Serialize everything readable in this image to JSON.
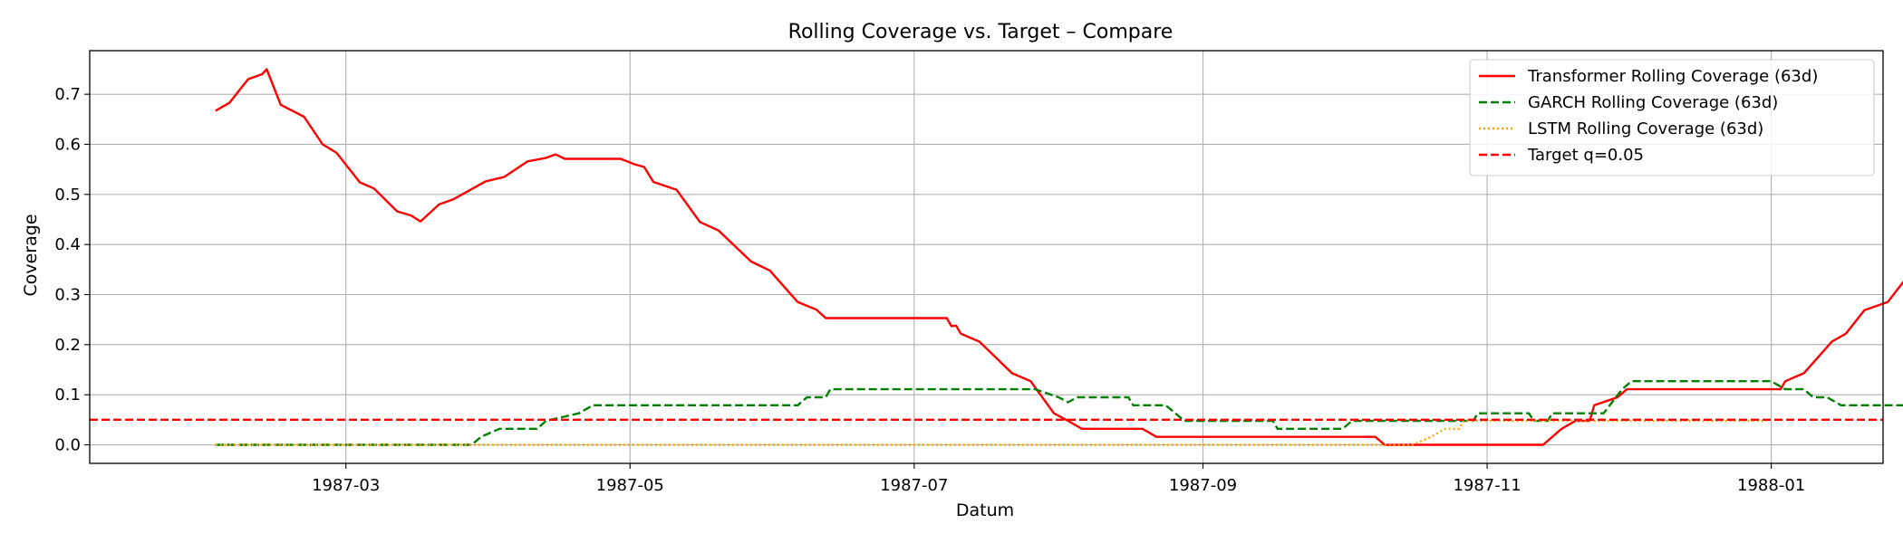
{
  "chart_data": {
    "type": "line",
    "title": "Rolling Coverage vs. Target – Compare",
    "xlabel": "Datum",
    "ylabel": "Coverage",
    "xlim": [
      "1987-01-05",
      "1988-01-25"
    ],
    "ylim": [
      -0.037,
      0.787
    ],
    "x_ticks": [
      "1987-03",
      "1987-05",
      "1987-07",
      "1987-09",
      "1987-11",
      "1988-01"
    ],
    "y_ticks": [
      "0.0",
      "0.1",
      "0.2",
      "0.3",
      "0.4",
      "0.5",
      "0.6",
      "0.7"
    ],
    "grid": true,
    "legend_position": "top-right",
    "series": [
      {
        "name": "Transformer Rolling Coverage (63d)",
        "color": "#ff0000",
        "style": "solid",
        "points": [
          [
            "1987-02-01",
            0.667
          ],
          [
            "1987-02-04",
            0.683
          ],
          [
            "1987-02-08",
            0.73
          ],
          [
            "1987-02-11",
            0.74
          ],
          [
            "1987-02-12",
            0.75
          ],
          [
            "1987-02-15",
            0.679
          ],
          [
            "1987-02-20",
            0.655
          ],
          [
            "1987-02-24",
            0.6
          ],
          [
            "1987-02-27",
            0.583
          ],
          [
            "1987-03-04",
            0.524
          ],
          [
            "1987-03-07",
            0.512
          ],
          [
            "1987-03-12",
            0.466
          ],
          [
            "1987-03-15",
            0.458
          ],
          [
            "1987-03-17",
            0.446
          ],
          [
            "1987-03-21",
            0.48
          ],
          [
            "1987-03-24",
            0.49
          ],
          [
            "1987-03-31",
            0.526
          ],
          [
            "1987-04-04",
            0.535
          ],
          [
            "1987-04-09",
            0.566
          ],
          [
            "1987-04-13",
            0.573
          ],
          [
            "1987-04-15",
            0.58
          ],
          [
            "1987-04-17",
            0.571
          ],
          [
            "1987-04-29",
            0.571
          ],
          [
            "1987-05-02",
            0.56
          ],
          [
            "1987-05-04",
            0.555
          ],
          [
            "1987-05-06",
            0.525
          ],
          [
            "1987-05-11",
            0.509
          ],
          [
            "1987-05-16",
            0.445
          ],
          [
            "1987-05-20",
            0.428
          ],
          [
            "1987-05-27",
            0.366
          ],
          [
            "1987-05-31",
            0.348
          ],
          [
            "1987-06-06",
            0.285
          ],
          [
            "1987-06-10",
            0.27
          ],
          [
            "1987-06-12",
            0.253
          ],
          [
            "1987-07-08",
            0.253
          ],
          [
            "1987-07-09",
            0.237
          ],
          [
            "1987-07-10",
            0.238
          ],
          [
            "1987-07-11",
            0.222
          ],
          [
            "1987-07-15",
            0.206
          ],
          [
            "1987-07-22",
            0.143
          ],
          [
            "1987-07-26",
            0.127
          ],
          [
            "1987-07-31",
            0.063
          ],
          [
            "1987-08-03",
            0.048
          ],
          [
            "1987-08-06",
            0.032
          ],
          [
            "1987-08-19",
            0.032
          ],
          [
            "1987-08-22",
            0.016
          ],
          [
            "1987-10-08",
            0.016
          ],
          [
            "1987-10-10",
            0.0
          ],
          [
            "1987-11-13",
            0.0
          ],
          [
            "1987-11-17",
            0.032
          ],
          [
            "1987-11-20",
            0.048
          ],
          [
            "1987-11-23",
            0.048
          ],
          [
            "1987-11-24",
            0.079
          ],
          [
            "1987-11-29",
            0.095
          ],
          [
            "1987-12-01",
            0.111
          ],
          [
            "1988-01-03",
            0.111
          ],
          [
            "1988-01-04",
            0.127
          ],
          [
            "1988-01-08",
            0.143
          ],
          [
            "1988-01-14",
            0.206
          ],
          [
            "1988-01-17",
            0.222
          ],
          [
            "1988-01-21",
            0.269
          ],
          [
            "1988-01-26",
            0.285
          ],
          [
            "1988-01-30",
            0.333
          ]
        ]
      },
      {
        "name": "GARCH Rolling Coverage (63d)",
        "color": "#008000",
        "style": "dashed",
        "points": [
          [
            "1987-02-01",
            0.0
          ],
          [
            "1987-03-28",
            0.0
          ],
          [
            "1987-03-30",
            0.016
          ],
          [
            "1987-04-03",
            0.032
          ],
          [
            "1987-04-11",
            0.032
          ],
          [
            "1987-04-13",
            0.048
          ],
          [
            "1987-04-20",
            0.063
          ],
          [
            "1987-04-23",
            0.079
          ],
          [
            "1987-06-06",
            0.079
          ],
          [
            "1987-06-08",
            0.095
          ],
          [
            "1987-06-12",
            0.095
          ],
          [
            "1987-06-13",
            0.111
          ],
          [
            "1987-07-27",
            0.111
          ],
          [
            "1987-08-01",
            0.095
          ],
          [
            "1987-08-03",
            0.085
          ],
          [
            "1987-08-05",
            0.095
          ],
          [
            "1987-08-16",
            0.095
          ],
          [
            "1987-08-17",
            0.079
          ],
          [
            "1987-08-24",
            0.079
          ],
          [
            "1987-08-28",
            0.048
          ],
          [
            "1987-09-16",
            0.048
          ],
          [
            "1987-09-17",
            0.032
          ],
          [
            "1987-10-01",
            0.032
          ],
          [
            "1987-10-03",
            0.048
          ],
          [
            "1987-10-29",
            0.048
          ],
          [
            "1987-10-30",
            0.063
          ],
          [
            "1987-11-10",
            0.063
          ],
          [
            "1987-11-11",
            0.048
          ],
          [
            "1987-11-14",
            0.048
          ],
          [
            "1987-11-15",
            0.063
          ],
          [
            "1987-11-26",
            0.063
          ],
          [
            "1987-11-30",
            0.111
          ],
          [
            "1987-12-02",
            0.127
          ],
          [
            "1988-01-01",
            0.127
          ],
          [
            "1988-01-04",
            0.111
          ],
          [
            "1988-01-08",
            0.111
          ],
          [
            "1988-01-10",
            0.095
          ],
          [
            "1988-01-13",
            0.095
          ],
          [
            "1988-01-16",
            0.079
          ],
          [
            "1988-01-31",
            0.079
          ]
        ]
      },
      {
        "name": "LSTM Rolling Coverage (63d)",
        "color": "#ffa500",
        "style": "dotted",
        "points": [
          [
            "1987-02-01",
            0.0
          ],
          [
            "1987-10-16",
            0.0
          ],
          [
            "1987-10-20",
            0.016
          ],
          [
            "1987-10-23",
            0.032
          ],
          [
            "1987-10-26",
            0.032
          ],
          [
            "1987-10-27",
            0.048
          ],
          [
            "1987-12-31",
            0.048
          ]
        ]
      }
    ],
    "reference_lines": [
      {
        "name": "Target q=0.05",
        "y": 0.05,
        "color": "#ff0000",
        "style": "dashed"
      }
    ]
  }
}
